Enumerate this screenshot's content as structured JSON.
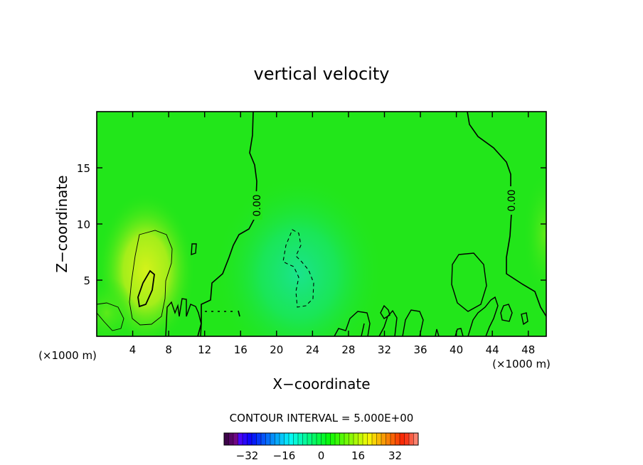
{
  "chart_data": {
    "type": "heatmap",
    "title": "vertical velocity",
    "xlabel": "X−coordinate",
    "ylabel": "Z−coordinate",
    "x_unit_left": "(×1000 m)",
    "x_unit_right": "(×1000 m)",
    "xlim": [
      0,
      50
    ],
    "ylim": [
      0,
      20
    ],
    "x_ticks": [
      4,
      8,
      12,
      16,
      20,
      24,
      28,
      32,
      36,
      40,
      44,
      48
    ],
    "x_tick_labels": [
      "4",
      "8",
      "12",
      "16",
      "20",
      "24",
      "28",
      "32",
      "36",
      "40",
      "44",
      "48"
    ],
    "y_ticks": [
      5,
      10,
      15
    ],
    "y_tick_labels": [
      "5",
      "10",
      "15"
    ],
    "contour_interval_text": "CONTOUR INTERVAL = 5.000E+00",
    "contour_labels": [
      {
        "text": "0.00",
        "x": 18,
        "y": 11.5
      },
      {
        "text": "0.00",
        "x": 46,
        "y": 12
      }
    ],
    "colorbar": {
      "min": -42,
      "max": 42,
      "ticks": [
        -32,
        -16,
        0,
        16,
        32
      ],
      "tick_labels": [
        "−32",
        "−16",
        "0",
        "16",
        "32"
      ]
    },
    "features": [
      {
        "kind": "updraft",
        "x": 5.5,
        "y": 5,
        "value": 6
      },
      {
        "kind": "downdraft",
        "x": 22,
        "y": 5.5,
        "value": -4
      }
    ],
    "colors": {
      "background_field": "#22e61a",
      "updraft": "#c4f219",
      "downdraft": "#1ae37a",
      "contour": "#000000"
    }
  }
}
